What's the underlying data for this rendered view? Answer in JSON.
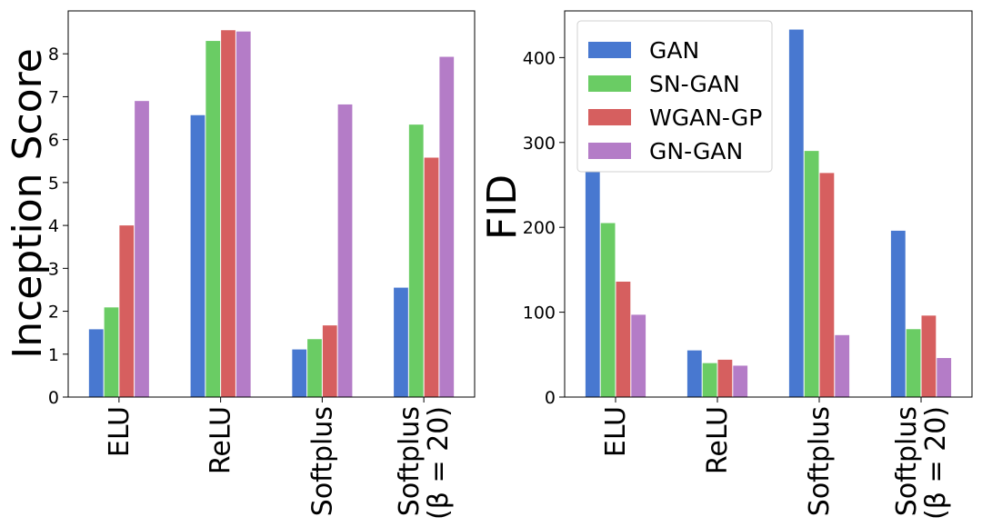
{
  "colors": {
    "GAN": "#4878d0",
    "SN-GAN": "#6acc64",
    "WGAN-GP": "#d65f5f",
    "GN-GAN": "#b47cc7"
  },
  "chart_data": [
    {
      "type": "bar",
      "ylabel": "Inception Score",
      "ylim": [
        0,
        9
      ],
      "yticks": [
        "0",
        "1",
        "2",
        "3",
        "4",
        "5",
        "6",
        "7",
        "8"
      ],
      "categories": [
        [
          "ELU"
        ],
        [
          "ReLU"
        ],
        [
          "Softplus"
        ],
        [
          "Softplus",
          "(β = 20)"
        ]
      ],
      "series": [
        {
          "name": "GAN",
          "values": [
            1.58,
            6.57,
            1.11,
            2.55
          ]
        },
        {
          "name": "SN-GAN",
          "values": [
            2.09,
            8.3,
            1.35,
            6.35
          ]
        },
        {
          "name": "WGAN-GP",
          "values": [
            4.0,
            8.55,
            1.67,
            5.58
          ]
        },
        {
          "name": "GN-GAN",
          "values": [
            6.9,
            8.52,
            6.82,
            7.93
          ]
        }
      ],
      "grid": false,
      "legend": "none"
    },
    {
      "type": "bar",
      "ylabel": "FID",
      "ylim": [
        0,
        455
      ],
      "yticks": [
        "0",
        "100",
        "200",
        "300",
        "400"
      ],
      "categories": [
        [
          "ELU"
        ],
        [
          "ReLU"
        ],
        [
          "Softplus"
        ],
        [
          "Softplus",
          "(β = 20)"
        ]
      ],
      "series": [
        {
          "name": "GAN",
          "values": [
            269,
            55,
            433,
            196
          ]
        },
        {
          "name": "SN-GAN",
          "values": [
            205,
            40,
            290,
            80
          ]
        },
        {
          "name": "WGAN-GP",
          "values": [
            136,
            44,
            264,
            96
          ]
        },
        {
          "name": "GN-GAN",
          "values": [
            97,
            37,
            73,
            46
          ]
        }
      ],
      "grid": false,
      "legend": "top-left"
    }
  ]
}
